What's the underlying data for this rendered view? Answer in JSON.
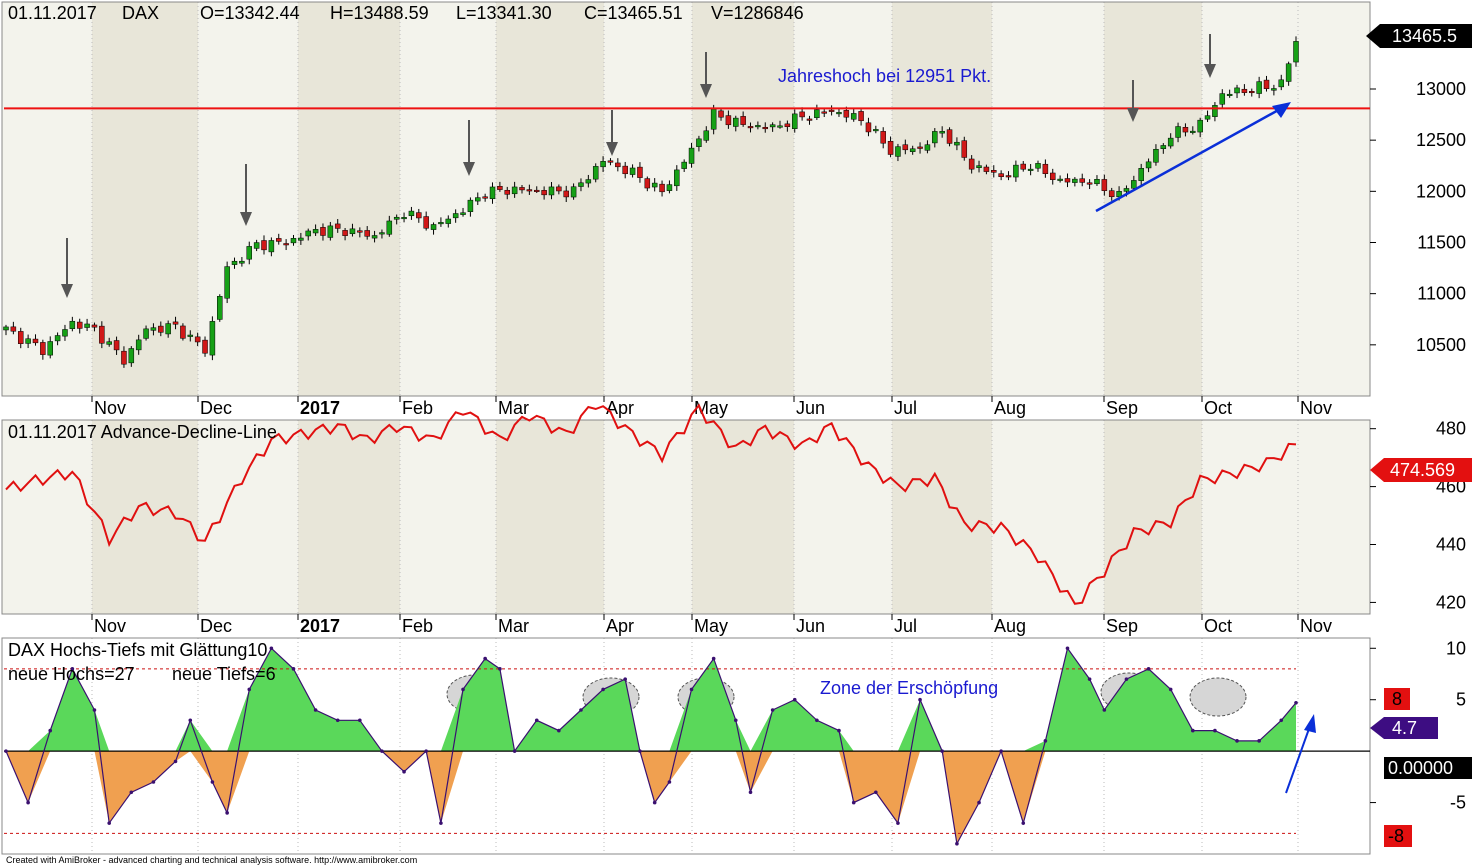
{
  "header": {
    "date": "01.11.2017",
    "symbol": "DAX",
    "open": "O=13342.44",
    "high": "H=13488.59",
    "low": "L=13341.30",
    "close": "C=13465.51",
    "volume": "V=1286846"
  },
  "months": [
    "Nov",
    "Dec",
    "2017",
    "Feb",
    "Mar",
    "Apr",
    "May",
    "Jun",
    "Jul",
    "Aug",
    "Sep",
    "Oct",
    "Nov"
  ],
  "panel1": {
    "annotation": "Jahreshoch bei 12951 Pkt.",
    "last_label": "13465.5",
    "resistance": 12810,
    "tick_labels": [
      "13000",
      "12500",
      "12000",
      "11500",
      "11000",
      "10500"
    ]
  },
  "panel2": {
    "title": "01.11.2017 Advance-Decline-Line",
    "last_label": "474.569",
    "tick_labels": [
      "480",
      "460",
      "440",
      "420"
    ]
  },
  "panel3": {
    "title_line1": "DAX Hochs-Tiefs mit Glättung10",
    "title_line2_highs": "neue Hochs=27",
    "title_line2_lows": "neue Tiefs=6",
    "annotation": "Zone der Erschöpfung",
    "upper_label": "8",
    "lower_label": "-8",
    "value_label": "4.7",
    "zero_label": "0.00000",
    "tick_labels": [
      "10",
      "5",
      "-5"
    ]
  },
  "credit": "Created with AmiBroker - advanced charting and technical analysis software. http://www.amibroker.com",
  "colors": {
    "up_candle": "#16a016",
    "down_candle": "#d01818",
    "resistance": "#ee1111",
    "trend_arrow": "#0a2fd8",
    "adl_line": "#e01010",
    "osc_line": "#3a1070",
    "osc_fill_up": "#5ad85a",
    "osc_fill_down": "#f0a050",
    "value_badge": "#3d0d82"
  },
  "chart_data": [
    {
      "type": "candlestick",
      "title": "01.11.2017 DAX",
      "x_range": [
        "2016-10-03",
        "2017-11-01"
      ],
      "ylim": [
        10000,
        13850
      ],
      "yticks": [
        10500,
        11000,
        11500,
        12000,
        12500,
        13000
      ],
      "series": [
        {
          "values": [
            [
              0,
              10650
            ],
            [
              5,
              10450
            ],
            [
              9,
              10720
            ],
            [
              12,
              10650
            ],
            [
              16,
              10350
            ],
            [
              19,
              10650
            ],
            [
              23,
              10680
            ],
            [
              27,
              10450
            ],
            [
              30,
              11250
            ],
            [
              34,
              11480
            ],
            [
              38,
              11500
            ],
            [
              42,
              11620
            ],
            [
              46,
              11620
            ],
            [
              50,
              11560
            ],
            [
              54,
              11800
            ],
            [
              58,
              11650
            ],
            [
              62,
              11820
            ],
            [
              65,
              11990
            ],
            [
              69,
              12020
            ],
            [
              73,
              12000
            ],
            [
              77,
              12000
            ],
            [
              81,
              12300
            ],
            [
              85,
              12180
            ],
            [
              89,
              11990
            ],
            [
              93,
              12400
            ],
            [
              96,
              12750
            ],
            [
              100,
              12650
            ],
            [
              104,
              12620
            ],
            [
              108,
              12730
            ],
            [
              112,
              12790
            ],
            [
              116,
              12700
            ],
            [
              120,
              12400
            ],
            [
              124,
              12420
            ],
            [
              127,
              12600
            ],
            [
              131,
              12250
            ],
            [
              135,
              12150
            ],
            [
              139,
              12260
            ],
            [
              143,
              12100
            ],
            [
              147,
              12100
            ],
            [
              151,
              11950
            ],
            [
              155,
              12300
            ],
            [
              158,
              12550
            ],
            [
              162,
              12650
            ],
            [
              165,
              12950
            ],
            [
              169,
              13000
            ],
            [
              173,
              13050
            ],
            [
              175,
              13465
            ]
          ]
        }
      ]
    },
    {
      "type": "line",
      "title": "01.11.2017 Advance-Decline-Line",
      "x_range": [
        "2016-10-03",
        "2017-11-01"
      ],
      "ylim": [
        416,
        483
      ],
      "yticks": [
        420,
        440,
        460,
        480
      ],
      "series": [
        {
          "values": [
            [
              0,
              459
            ],
            [
              4,
              462
            ],
            [
              9,
              465
            ],
            [
              14,
              442
            ],
            [
              18,
              453
            ],
            [
              23,
              451
            ],
            [
              27,
              441
            ],
            [
              32,
              463
            ],
            [
              36,
              476
            ],
            [
              40,
              478
            ],
            [
              45,
              481
            ],
            [
              49,
              476
            ],
            [
              53,
              481
            ],
            [
              58,
              476
            ],
            [
              62,
              487
            ],
            [
              67,
              476
            ],
            [
              71,
              485
            ],
            [
              76,
              478
            ],
            [
              80,
              489
            ],
            [
              85,
              478
            ],
            [
              89,
              471
            ],
            [
              94,
              487
            ],
            [
              99,
              473
            ],
            [
              103,
              480
            ],
            [
              108,
              474
            ],
            [
              112,
              481
            ],
            [
              117,
              467
            ],
            [
              121,
              460
            ],
            [
              126,
              463
            ],
            [
              130,
              447
            ],
            [
              135,
              446
            ],
            [
              140,
              436
            ],
            [
              145,
              419
            ],
            [
              149,
              431
            ],
            [
              153,
              444
            ],
            [
              158,
              448
            ],
            [
              162,
              462
            ],
            [
              167,
              465
            ],
            [
              171,
              468
            ],
            [
              175,
              474.569
            ]
          ]
        }
      ]
    },
    {
      "type": "area",
      "title": "DAX Hochs-Tiefs mit Glättung10",
      "x_range": [
        "2016-10-03",
        "2017-11-01"
      ],
      "ylim": [
        -10,
        11
      ],
      "yticks": [
        -5,
        5,
        10
      ],
      "reference_lines": [
        8,
        0,
        -8
      ],
      "series": [
        {
          "values": [
            [
              0,
              0
            ],
            [
              3,
              -5
            ],
            [
              6,
              2
            ],
            [
              9,
              8
            ],
            [
              12,
              4
            ],
            [
              14,
              -7
            ],
            [
              17,
              -4
            ],
            [
              20,
              -3
            ],
            [
              23,
              -1
            ],
            [
              25,
              3
            ],
            [
              28,
              -3
            ],
            [
              30,
              -6
            ],
            [
              33,
              6
            ],
            [
              36,
              10
            ],
            [
              39,
              8
            ],
            [
              42,
              4
            ],
            [
              45,
              3
            ],
            [
              48,
              3
            ],
            [
              51,
              0
            ],
            [
              54,
              -2
            ],
            [
              57,
              0
            ],
            [
              59,
              -7
            ],
            [
              62,
              6
            ],
            [
              65,
              9
            ],
            [
              67,
              8
            ],
            [
              69,
              0
            ],
            [
              72,
              3
            ],
            [
              75,
              2
            ],
            [
              78,
              4
            ],
            [
              81,
              6
            ],
            [
              84,
              7
            ],
            [
              86,
              0
            ],
            [
              88,
              -5
            ],
            [
              90,
              -3
            ],
            [
              93,
              6
            ],
            [
              96,
              9
            ],
            [
              99,
              3
            ],
            [
              101,
              -4
            ],
            [
              104,
              4
            ],
            [
              107,
              5
            ],
            [
              110,
              3
            ],
            [
              113,
              2
            ],
            [
              115,
              -5
            ],
            [
              118,
              -4
            ],
            [
              121,
              -7
            ],
            [
              124,
              5
            ],
            [
              127,
              0
            ],
            [
              129,
              -9
            ],
            [
              132,
              -5
            ],
            [
              135,
              0
            ],
            [
              138,
              -7
            ],
            [
              141,
              1
            ],
            [
              144,
              10
            ],
            [
              147,
              7
            ],
            [
              149,
              4
            ],
            [
              152,
              7
            ],
            [
              155,
              8
            ],
            [
              158,
              6
            ],
            [
              161,
              2
            ],
            [
              164,
              2
            ],
            [
              167,
              1
            ],
            [
              170,
              1
            ],
            [
              173,
              3
            ],
            [
              175,
              4.7
            ]
          ]
        }
      ]
    }
  ]
}
